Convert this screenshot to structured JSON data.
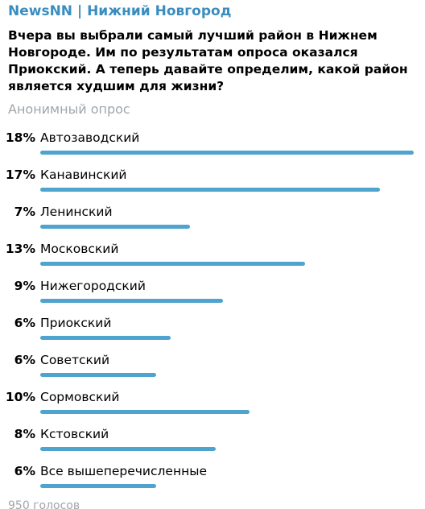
{
  "channel_title": "NewsNN | Нижний Новгород",
  "question": "Вчера вы выбрали самый лучший район в Нижнем Новгороде. Им по результатам опроса оказался Приокский. А теперь давайте определим, какой район является худшим для жизни?",
  "poll_type": "Анонимный опрос",
  "options": [
    {
      "percent": "18%",
      "label": "Автозаводский",
      "fill": 1.0
    },
    {
      "percent": "17%",
      "label": "Канавинский",
      "fill": 0.91
    },
    {
      "percent": "7%",
      "label": "Ленинский",
      "fill": 0.4
    },
    {
      "percent": "13%",
      "label": "Московский",
      "fill": 0.71
    },
    {
      "percent": "9%",
      "label": "Нижегородский",
      "fill": 0.49
    },
    {
      "percent": "6%",
      "label": "Приокский",
      "fill": 0.35
    },
    {
      "percent": "6%",
      "label": "Советский",
      "fill": 0.31
    },
    {
      "percent": "10%",
      "label": "Сормовский",
      "fill": 0.56
    },
    {
      "percent": "8%",
      "label": "Кстовский",
      "fill": 0.47
    },
    {
      "percent": "6%",
      "label": "Все вышеперечисленные",
      "fill": 0.31
    }
  ],
  "votes": "950 голосов",
  "colors": {
    "accent": "#3a8dbf",
    "bar": "#4fa3cf",
    "muted": "#a0a6ab"
  }
}
